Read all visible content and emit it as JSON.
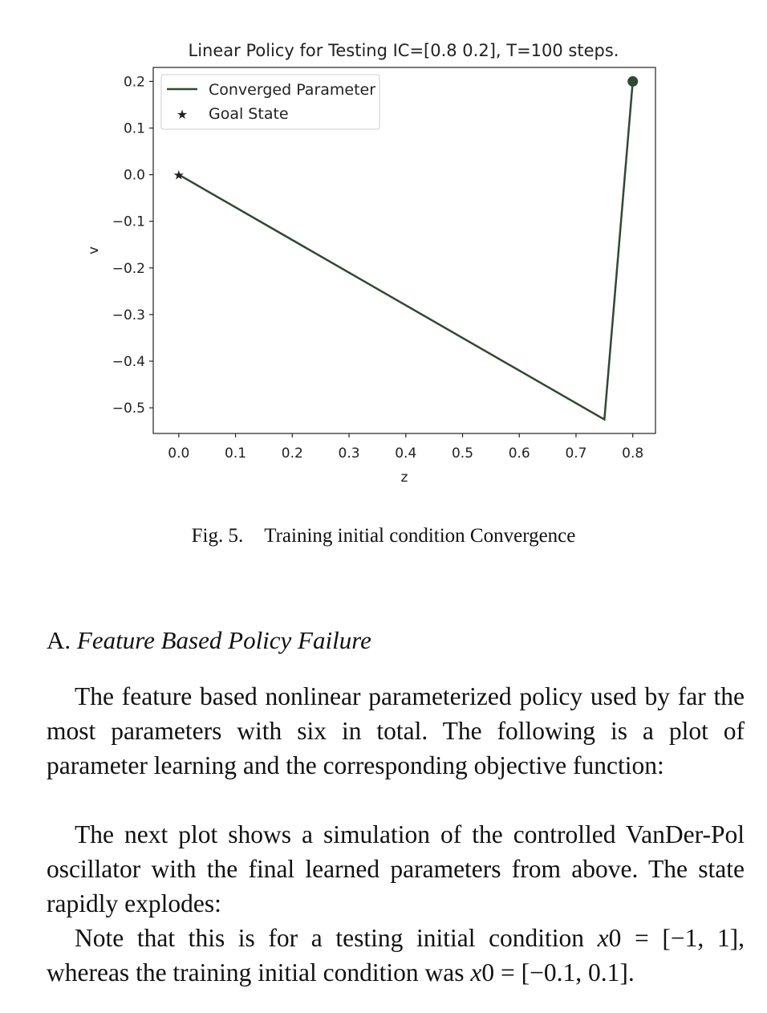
{
  "chart_data": {
    "type": "line",
    "title": "Linear Policy for Testing IC=[0.8 0.2], T=100 steps.",
    "xlabel": "z",
    "ylabel": "v",
    "xlim": [
      -0.045,
      0.84
    ],
    "ylim": [
      -0.555,
      0.23
    ],
    "xticks": [
      "0.0",
      "0.1",
      "0.2",
      "0.3",
      "0.4",
      "0.5",
      "0.6",
      "0.7",
      "0.8"
    ],
    "yticks": [
      "0.2",
      "0.1",
      "0.0",
      "−0.1",
      "−0.2",
      "−0.3",
      "−0.4",
      "−0.5"
    ],
    "grid": false,
    "legend_position": "top-left",
    "series": [
      {
        "name": "Converged Parameter",
        "x": [
          0.8,
          0.75,
          0.0
        ],
        "y": [
          0.2,
          -0.525,
          0.0
        ],
        "color": "#2e4a32"
      },
      {
        "name": "Goal State",
        "marker": "star",
        "x": [
          0.0
        ],
        "y": [
          0.0
        ],
        "color": "#666666"
      }
    ],
    "start_marker": {
      "x": 0.8,
      "y": 0.2,
      "color": "#2e4a32"
    }
  },
  "caption": {
    "label": "Fig. 5.",
    "text": "Training initial condition Convergence"
  },
  "section": {
    "number": "A.",
    "title": "Feature Based Policy Failure"
  },
  "paragraphs": {
    "p1": "The feature based nonlinear parameterized policy used by far the most parameters with six in total. The following is a plot of parameter learning and the corresponding objective function:",
    "p2": "The next plot shows a simulation of the controlled VanDer-Pol oscillator with the final learned parameters from above. The state rapidly explodes:",
    "p3_a": "Note that this is for a testing initial condition ",
    "p3_m1": "x",
    "p3_m1b": "0 = [−1, 1],",
    "p3_b": " whereas the training initial condition was ",
    "p3_m2": "x",
    "p3_m2b": "0 = [−0.1, 0.1]."
  }
}
